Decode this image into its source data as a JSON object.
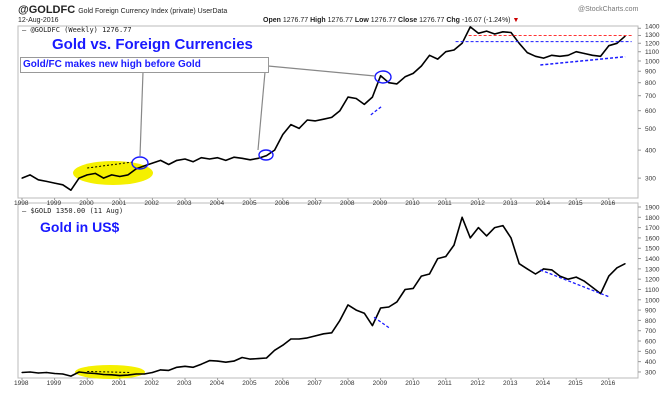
{
  "header": {
    "symbol": "@GOLDFC",
    "name": "Gold Foreign Currency Index (private) UserData",
    "date": "12-Aug-2016",
    "brand": "@StockCharts.com",
    "ohlc": [
      {
        "k": "Open",
        "v": "1276.77"
      },
      {
        "k": "High",
        "v": "1276.77"
      },
      {
        "k": "Low",
        "v": "1276.77"
      },
      {
        "k": "Close",
        "v": "1276.77"
      },
      {
        "k": "Chg",
        "v": "-16.07 (-1.24%)"
      }
    ]
  },
  "chart_data": [
    {
      "type": "line",
      "legend": "@GOLDFC (Weekly) 1276.77",
      "title": "Gold vs. Foreign Currencies",
      "callout": "Gold/FC makes new high before Gold",
      "scale": "log",
      "yticks": [
        300,
        400,
        500,
        600,
        700,
        800,
        900,
        1000,
        1100,
        1200,
        1300,
        1400
      ],
      "xticks": [
        "1998",
        "1999",
        "2000",
        "2001",
        "2002",
        "2003",
        "2004",
        "2005",
        "2006",
        "2007",
        "2008",
        "2009",
        "2010",
        "2011",
        "2012",
        "2013",
        "2014",
        "2015",
        "2016"
      ],
      "x_start": 1998,
      "x_step": 0.25,
      "values": [
        300,
        310,
        295,
        290,
        285,
        280,
        265,
        300,
        310,
        315,
        300,
        310,
        305,
        310,
        330,
        340,
        350,
        360,
        345,
        360,
        365,
        355,
        370,
        365,
        370,
        360,
        372,
        368,
        362,
        368,
        378,
        400,
        470,
        520,
        500,
        545,
        540,
        550,
        560,
        600,
        690,
        680,
        640,
        690,
        860,
        800,
        790,
        850,
        880,
        950,
        1060,
        1020,
        1100,
        1120,
        1200,
        1420,
        1330,
        1360,
        1320,
        1350,
        1340,
        1200,
        1090,
        1050,
        1030,
        1060,
        1050,
        1060,
        1100,
        1080,
        1060,
        1050,
        1170,
        1200,
        1290
      ],
      "color": "#000000"
    },
    {
      "type": "line",
      "legend": "$GOLD 1350.00 (11 Aug)",
      "title": "Gold in US$",
      "scale": "linear",
      "ylim": [
        250,
        1950
      ],
      "yticks": [
        300,
        400,
        500,
        600,
        700,
        800,
        900,
        1000,
        1100,
        1200,
        1300,
        1400,
        1500,
        1600,
        1700,
        1800,
        1900
      ],
      "xticks": [
        "1998",
        "1999",
        "2000",
        "2001",
        "2002",
        "2003",
        "2004",
        "2005",
        "2006",
        "2007",
        "2008",
        "2009",
        "2010",
        "2011",
        "2012",
        "2013",
        "2014",
        "2015",
        "2016"
      ],
      "x_start": 1998,
      "x_step": 0.25,
      "values": [
        295,
        300,
        290,
        295,
        285,
        280,
        260,
        300,
        290,
        285,
        275,
        272,
        265,
        270,
        280,
        280,
        295,
        320,
        315,
        345,
        355,
        345,
        375,
        410,
        405,
        395,
        405,
        440,
        425,
        430,
        435,
        510,
        560,
        620,
        620,
        630,
        650,
        670,
        680,
        800,
        950,
        900,
        870,
        750,
        920,
        930,
        980,
        1100,
        1110,
        1230,
        1250,
        1400,
        1420,
        1530,
        1800,
        1600,
        1700,
        1620,
        1700,
        1720,
        1600,
        1350,
        1300,
        1250,
        1300,
        1290,
        1230,
        1200,
        1220,
        1180,
        1120,
        1060,
        1230,
        1310,
        1350
      ],
      "color": "#000000"
    }
  ],
  "colors": {
    "annotation": "#1a1aff",
    "highlight": "#f5f000",
    "resistance": "#ff3333"
  }
}
